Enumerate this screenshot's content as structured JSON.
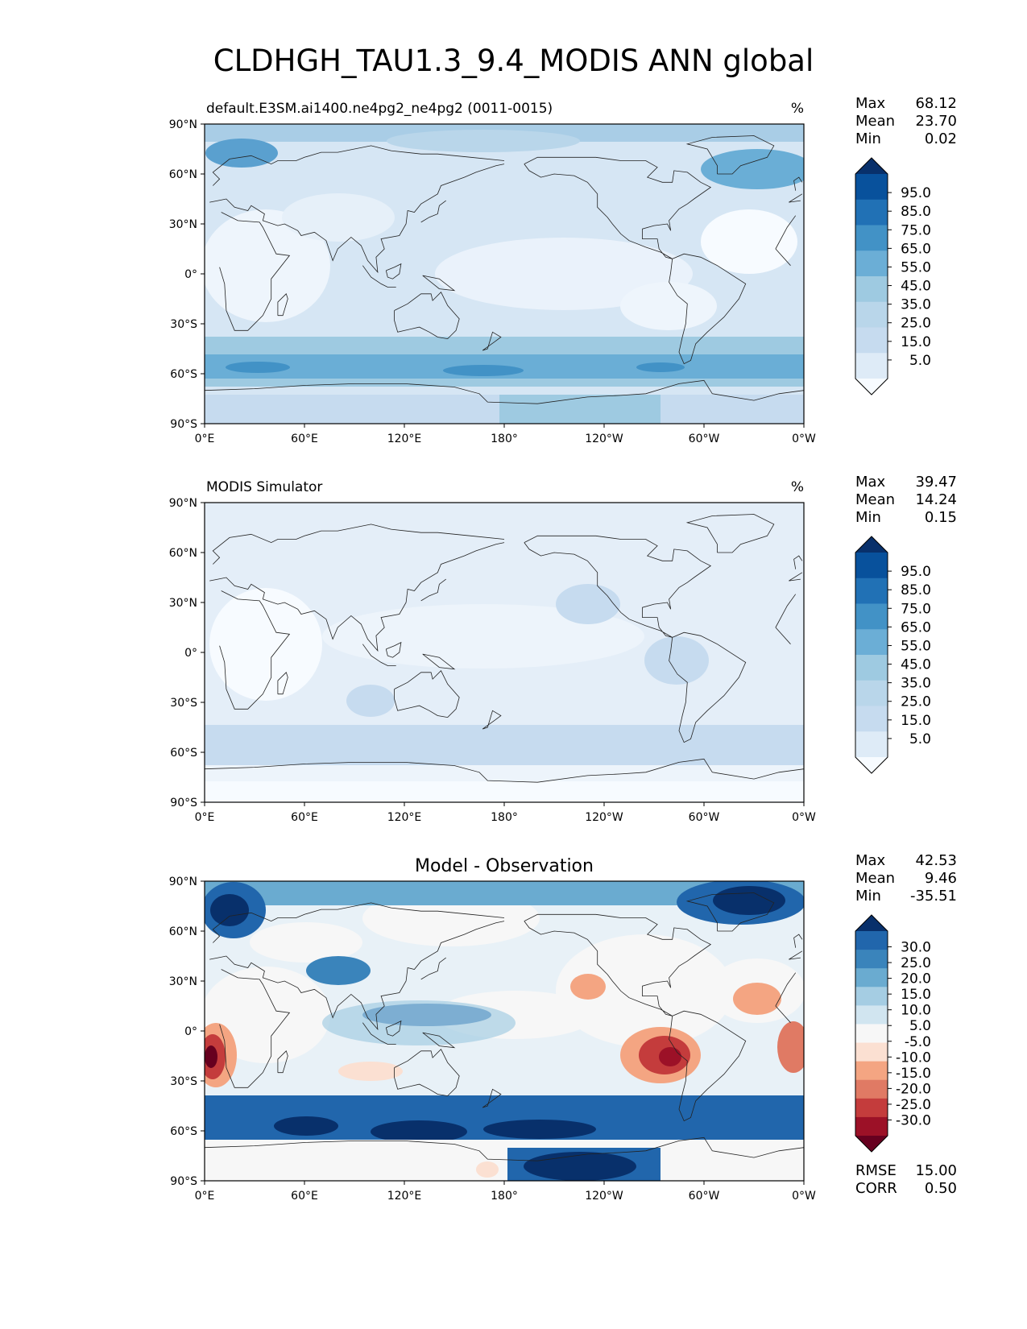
{
  "figure": {
    "title": "CLDHGH_TAU1.3_9.4_MODIS ANN global"
  },
  "axes": {
    "lat_ticks": [
      "90°N",
      "60°N",
      "30°N",
      "0°",
      "30°S",
      "60°S",
      "90°S"
    ],
    "lon_ticks": [
      "0°E",
      "60°E",
      "120°E",
      "180°",
      "120°W",
      "60°W",
      "0°W"
    ]
  },
  "panels": [
    {
      "left_title": "default.E3SM.ai1400.ne4pg2_ne4pg2 (0011-0015)",
      "center_title": "",
      "units": "%",
      "stats": [
        {
          "label": "Max",
          "value": "68.12"
        },
        {
          "label": "Mean",
          "value": "23.70"
        },
        {
          "label": "Min",
          "value": "0.02"
        }
      ],
      "colorbar_labels": [
        "95.0",
        "85.0",
        "75.0",
        "65.0",
        "55.0",
        "45.0",
        "35.0",
        "25.0",
        "15.0",
        "5.0"
      ],
      "colorbar_colors": [
        "#08306b",
        "#08519c",
        "#2171b5",
        "#4292c6",
        "#6baed6",
        "#9ecae1",
        "#b9d6ea",
        "#c6dbef",
        "#deebf7",
        "#f7fbff"
      ],
      "footer_stats": []
    },
    {
      "left_title": "MODIS Simulator",
      "center_title": "",
      "units": "%",
      "stats": [
        {
          "label": "Max",
          "value": "39.47"
        },
        {
          "label": "Mean",
          "value": "14.24"
        },
        {
          "label": "Min",
          "value": "0.15"
        }
      ],
      "colorbar_labels": [
        "95.0",
        "85.0",
        "75.0",
        "65.0",
        "55.0",
        "45.0",
        "35.0",
        "25.0",
        "15.0",
        "5.0"
      ],
      "colorbar_colors": [
        "#08306b",
        "#08519c",
        "#2171b5",
        "#4292c6",
        "#6baed6",
        "#9ecae1",
        "#b9d6ea",
        "#c6dbef",
        "#deebf7",
        "#f7fbff"
      ],
      "footer_stats": []
    },
    {
      "left_title": "",
      "center_title": "Model - Observation",
      "units": "",
      "stats": [
        {
          "label": "Max",
          "value": "42.53"
        },
        {
          "label": "Mean",
          "value": "9.46"
        },
        {
          "label": "Min",
          "value": "-35.51"
        }
      ],
      "colorbar_labels": [
        "30.0",
        "25.0",
        "20.0",
        "15.0",
        "10.0",
        "5.0",
        "-5.0",
        "-10.0",
        "-15.0",
        "-20.0",
        "-25.0",
        "-30.0"
      ],
      "colorbar_colors": [
        "#08306b",
        "#2166ac",
        "#3a84bb",
        "#6aabd0",
        "#a5cde3",
        "#d1e5f0",
        "#f7f7f7",
        "#fbe0d2",
        "#f4a582",
        "#e07a64",
        "#c43c3c",
        "#9c1127",
        "#67001f"
      ],
      "footer_stats": [
        {
          "label": "RMSE",
          "value": "15.00"
        },
        {
          "label": "CORR",
          "value": "0.50"
        }
      ]
    }
  ]
}
